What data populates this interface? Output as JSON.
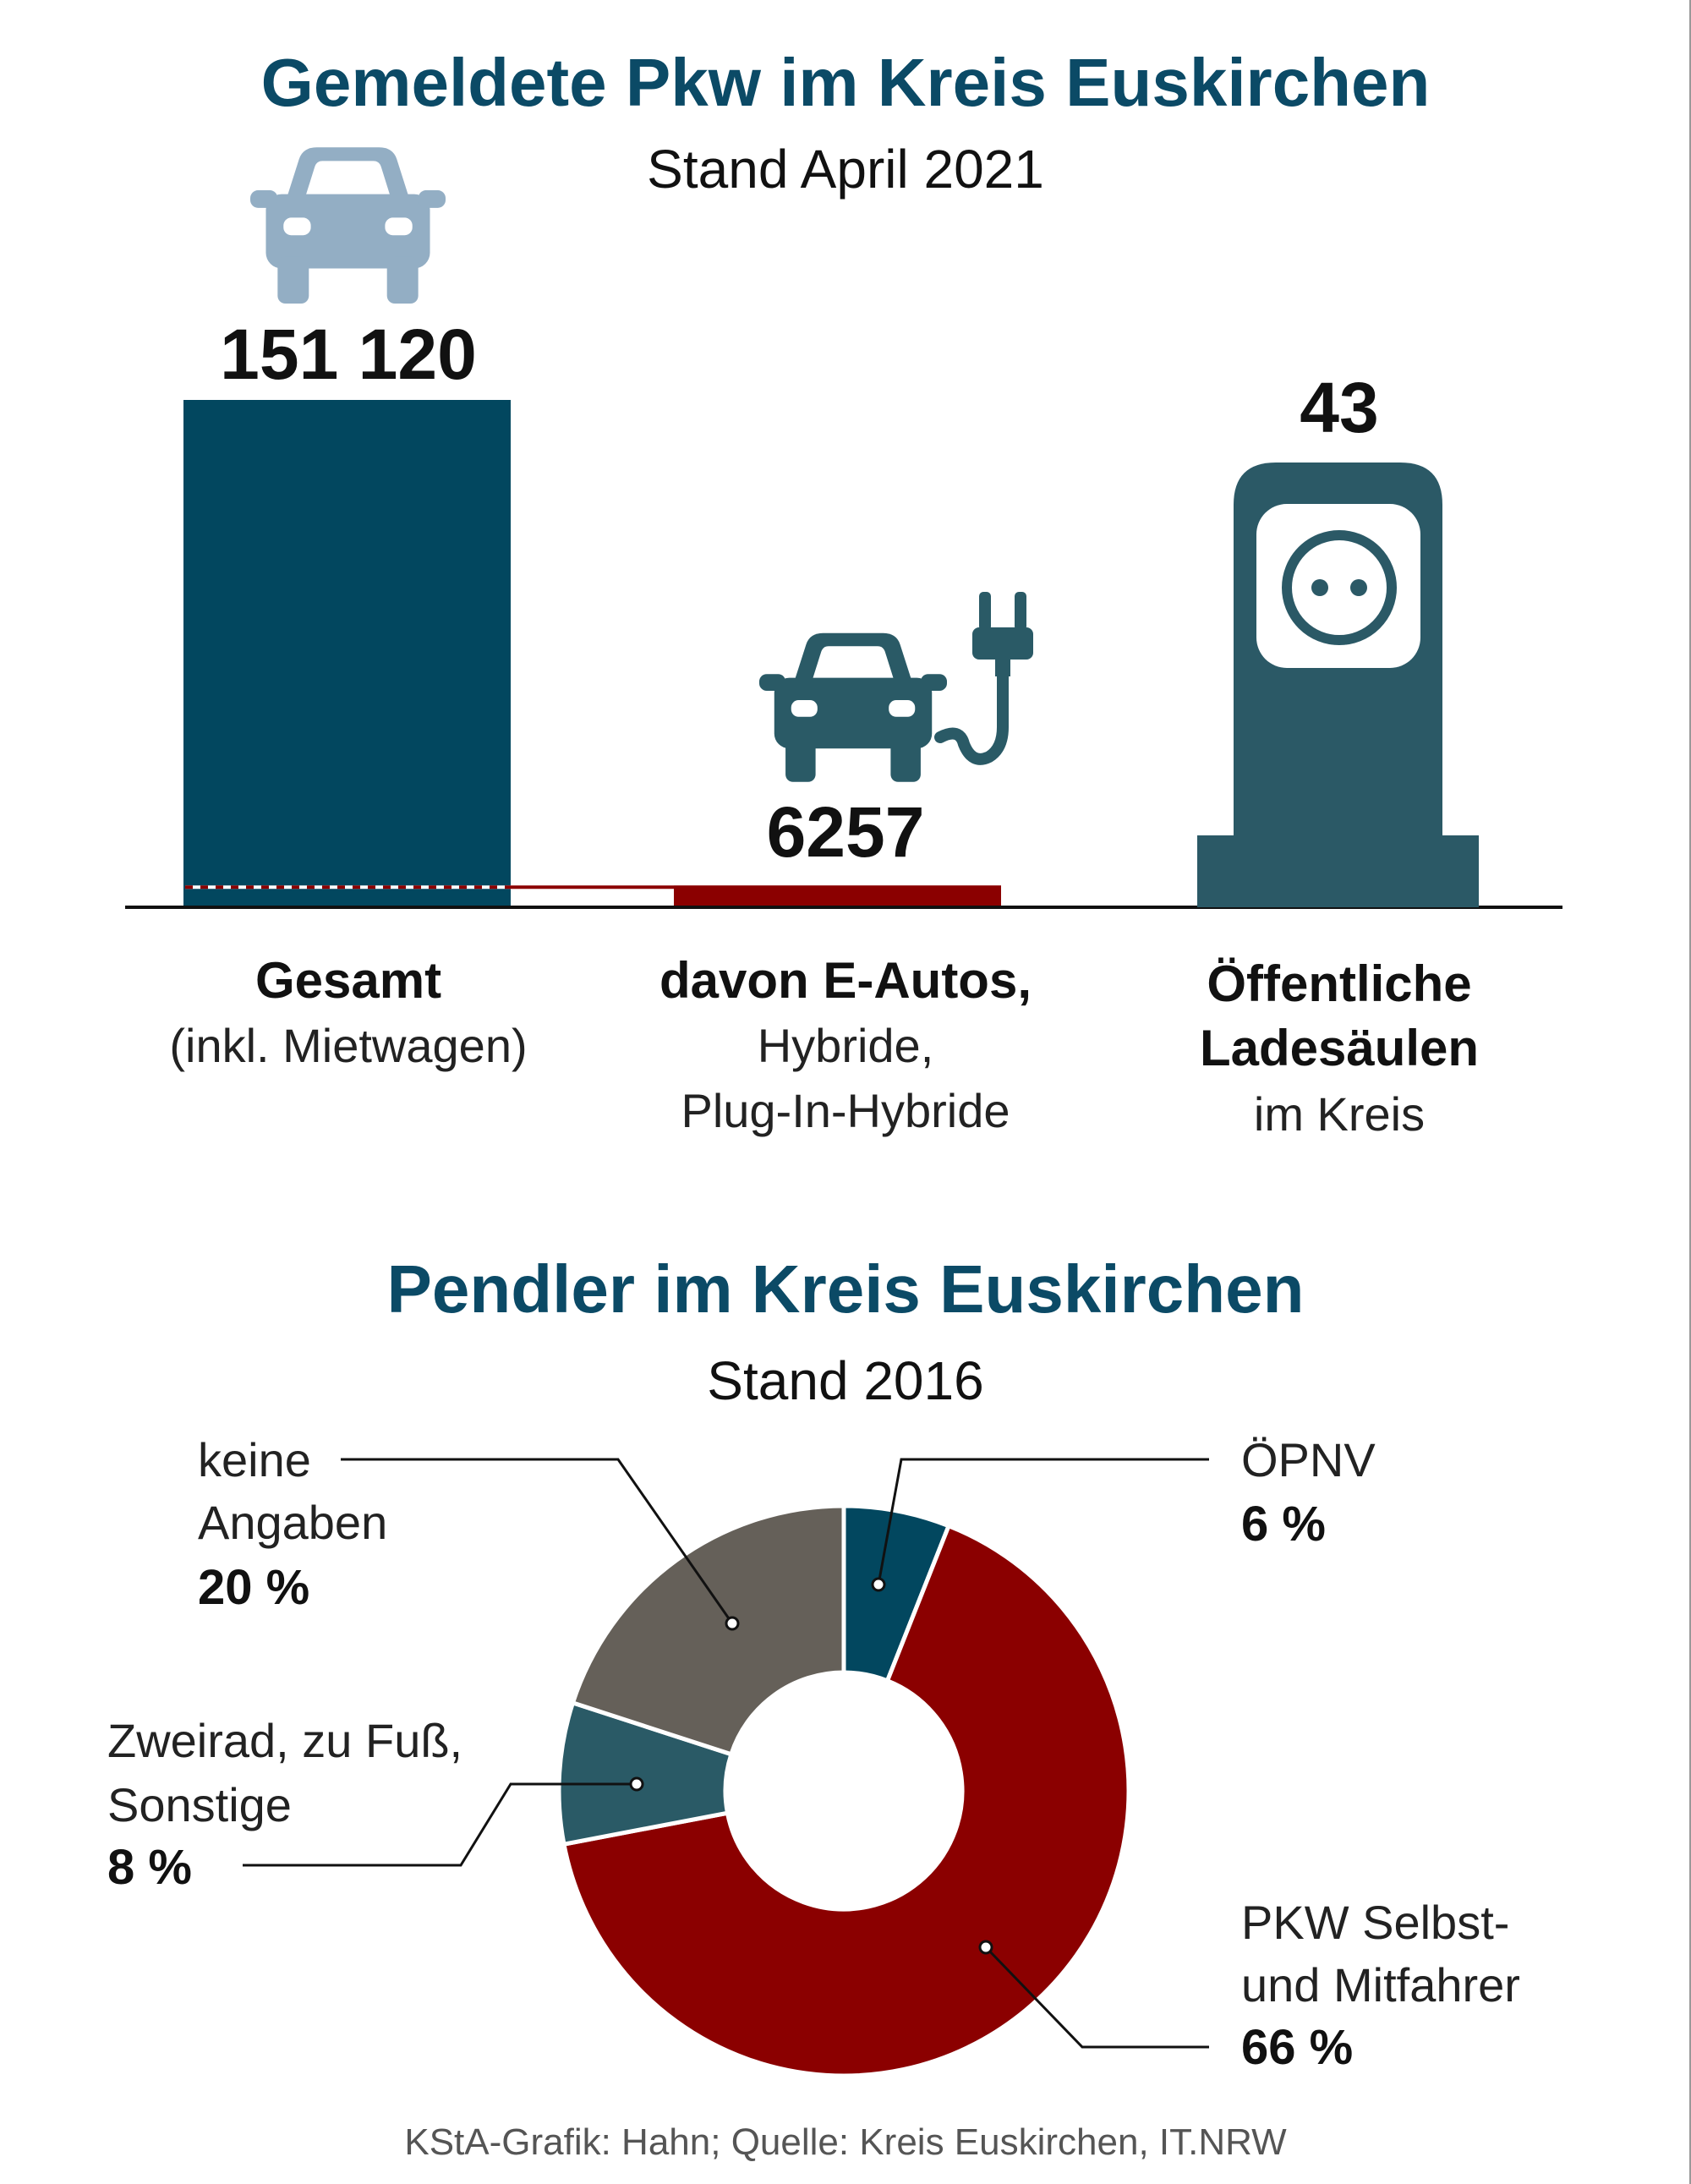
{
  "section1": {
    "title": "Gemeldete Pkw im Kreis Euskirchen",
    "subtitle": "Stand April 2021",
    "icons": [
      "car-icon",
      "electric-car-plug-icon",
      "charging-station-socket-icon"
    ],
    "gesamt": {
      "value_label": "151 120",
      "label_bold": "Gesamt",
      "label_sub": "(inkl. Mietwagen)"
    },
    "eautos": {
      "value_label": "6257",
      "label_bold": "davon E-Autos,",
      "label_line2": "Hybride,",
      "label_line3": "Plug-In-Hybride"
    },
    "ladesaeulen": {
      "value_label": "43",
      "label_line1": "Öffentliche",
      "label_line2": "Ladesäulen",
      "label_line3": "im Kreis"
    }
  },
  "section2": {
    "title": "Pendler im Kreis Euskirchen",
    "subtitle": "Stand 2016"
  },
  "labels": {
    "keine": {
      "line1": "keine",
      "line2": "Angaben",
      "value": "20 %"
    },
    "oepnv": {
      "line1": "ÖPNV",
      "value": "6 %"
    },
    "zweirad": {
      "line1": "Zweirad, zu Fuß,",
      "line2": "Sonstige",
      "value": "8 %"
    },
    "pkw": {
      "line1": "PKW Selbst-",
      "line2": "und Mitfahrer",
      "value": "66 %"
    }
  },
  "footer": "KStA-Grafik: Hahn; Quelle: Kreis Euskirchen, IT.NRW",
  "colors": {
    "bar_total": "#02475f",
    "bar_eauto": "#8b0000",
    "car_icon": "#93aec4",
    "station": "#2b5966",
    "title": "#0b4a66"
  },
  "chart_data": [
    {
      "type": "bar",
      "title": "Gemeldete Pkw im Kreis Euskirchen",
      "subtitle": "Stand April 2021",
      "categories": [
        "Gesamt (inkl. Mietwagen)",
        "davon E-Autos, Hybride, Plug-In-Hybride"
      ],
      "values": [
        151120,
        6257
      ],
      "colors": [
        "#02475f",
        "#8b0000"
      ],
      "extra": {
        "category": "Öffentliche Ladesäulen im Kreis",
        "value": 43
      }
    },
    {
      "type": "pie",
      "donut": true,
      "title": "Pendler im Kreis Euskirchen",
      "subtitle": "Stand 2016",
      "slices": [
        {
          "label": "ÖPNV",
          "value": 6,
          "color": "#02475f"
        },
        {
          "label": "PKW Selbst- und Mitfahrer",
          "value": 66,
          "color": "#8b0000"
        },
        {
          "label": "Zweirad, zu Fuß, Sonstige",
          "value": 8,
          "color": "#2a5a66"
        },
        {
          "label": "keine Angaben",
          "value": 20,
          "color": "#656059"
        }
      ]
    }
  ]
}
